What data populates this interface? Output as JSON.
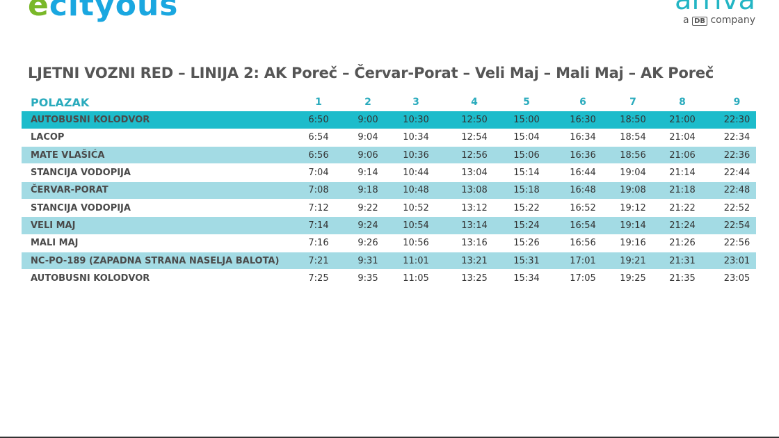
{
  "logos": {
    "left": "cityous",
    "right": "arriva",
    "right_sub_prefix": "a",
    "right_sub_db": "DB",
    "right_sub_suffix": "company"
  },
  "title": "LJETNI VOZNI RED – LINIJA 2: AK Poreč – Červar-Porat – Veli Maj – Mali Maj – AK Poreč",
  "table": {
    "header": "POLAZAK",
    "columns": [
      "1",
      "2",
      "3",
      "4",
      "5",
      "6",
      "7",
      "8",
      "9"
    ],
    "rows": [
      {
        "stop": "AUTOBUSNI KOLODVOR",
        "times": [
          "6:50",
          "9:00",
          "10:30",
          "12:50",
          "15:00",
          "16:30",
          "18:50",
          "21:00",
          "22:30"
        ]
      },
      {
        "stop": "LACOP",
        "times": [
          "6:54",
          "9:04",
          "10:34",
          "12:54",
          "15:04",
          "16:34",
          "18:54",
          "21:04",
          "22:34"
        ]
      },
      {
        "stop": "MATE VLAŠIĆA",
        "times": [
          "6:56",
          "9:06",
          "10:36",
          "12:56",
          "15:06",
          "16:36",
          "18:56",
          "21:06",
          "22:36"
        ]
      },
      {
        "stop": "STANCIJA VODOPIJA",
        "times": [
          "7:04",
          "9:14",
          "10:44",
          "13:04",
          "15:14",
          "16:44",
          "19:04",
          "21:14",
          "22:44"
        ]
      },
      {
        "stop": "ČERVAR-PORAT",
        "times": [
          "7:08",
          "9:18",
          "10:48",
          "13:08",
          "15:18",
          "16:48",
          "19:08",
          "21:18",
          "22:48"
        ]
      },
      {
        "stop": "STANCIJA VODOPIJA",
        "times": [
          "7:12",
          "9:22",
          "10:52",
          "13:12",
          "15:22",
          "16:52",
          "19:12",
          "21:22",
          "22:52"
        ]
      },
      {
        "stop": "VELI MAJ",
        "times": [
          "7:14",
          "9:24",
          "10:54",
          "13:14",
          "15:24",
          "16:54",
          "19:14",
          "21:24",
          "22:54"
        ]
      },
      {
        "stop": "MALI MAJ",
        "times": [
          "7:16",
          "9:26",
          "10:56",
          "13:16",
          "15:26",
          "16:56",
          "19:16",
          "21:26",
          "22:56"
        ]
      },
      {
        "stop": "NC-PO-189 (ZAPADNA STRANA NASELJA BALOTA)",
        "times": [
          "7:21",
          "9:31",
          "11:01",
          "13:21",
          "15:31",
          "17:01",
          "19:21",
          "21:31",
          "23:01"
        ]
      },
      {
        "stop": "AUTOBUSNI KOLODVOR",
        "times": [
          "7:25",
          "9:35",
          "11:05",
          "13:25",
          "15:34",
          "17:05",
          "19:25",
          "21:35",
          "23:05"
        ]
      }
    ]
  },
  "colors": {
    "accent": "#1dbccb",
    "stripe": "#a3dbe4",
    "header": "#2aabbd"
  }
}
